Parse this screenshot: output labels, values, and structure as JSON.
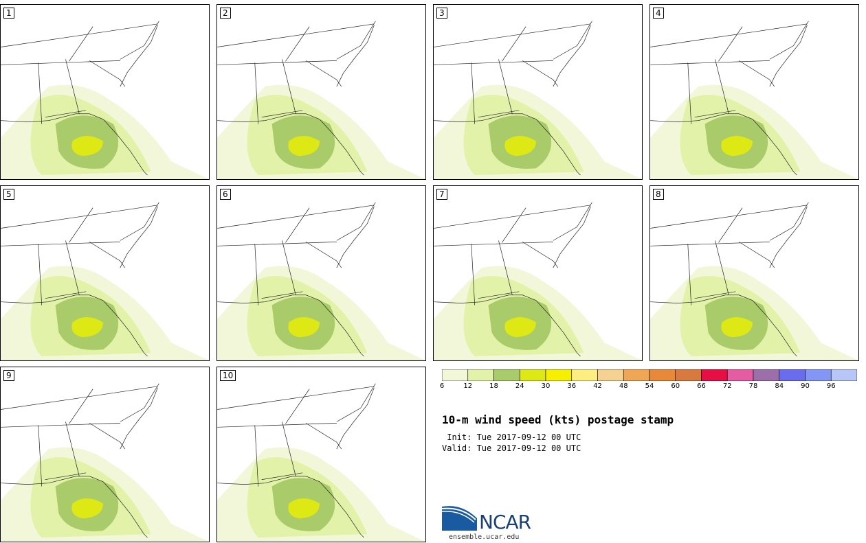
{
  "panels": [
    {
      "label": "1"
    },
    {
      "label": "2"
    },
    {
      "label": "3"
    },
    {
      "label": "4"
    },
    {
      "label": "5"
    },
    {
      "label": "6"
    },
    {
      "label": "7"
    },
    {
      "label": "8"
    },
    {
      "label": "9"
    },
    {
      "label": "10"
    }
  ],
  "colorbar": {
    "colors": [
      "#f1f7d8",
      "#e2f2a8",
      "#a9cb6a",
      "#dde814",
      "#f7ef00",
      "#fdee82",
      "#f6d292",
      "#efa755",
      "#e8893a",
      "#d87a40",
      "#e70e44",
      "#e65ca3",
      "#9c6fab",
      "#6a6cef",
      "#8496f5",
      "#b7c6f7"
    ],
    "tick_labels": [
      "6",
      "12",
      "18",
      "24",
      "30",
      "36",
      "42",
      "48",
      "54",
      "60",
      "66",
      "72",
      "78",
      "84",
      "90",
      "96"
    ]
  },
  "title": "10-m wind speed (kts) postage stamp",
  "init": " Init: Tue 2017-09-12 00 UTC",
  "valid": "Valid: Tue 2017-09-12 00 UTC",
  "logo": {
    "text": "NCAR",
    "url": "ensemble.ucar.edu",
    "colors": {
      "dark": "#1a3f74",
      "light": "#3d8fd0"
    }
  }
}
